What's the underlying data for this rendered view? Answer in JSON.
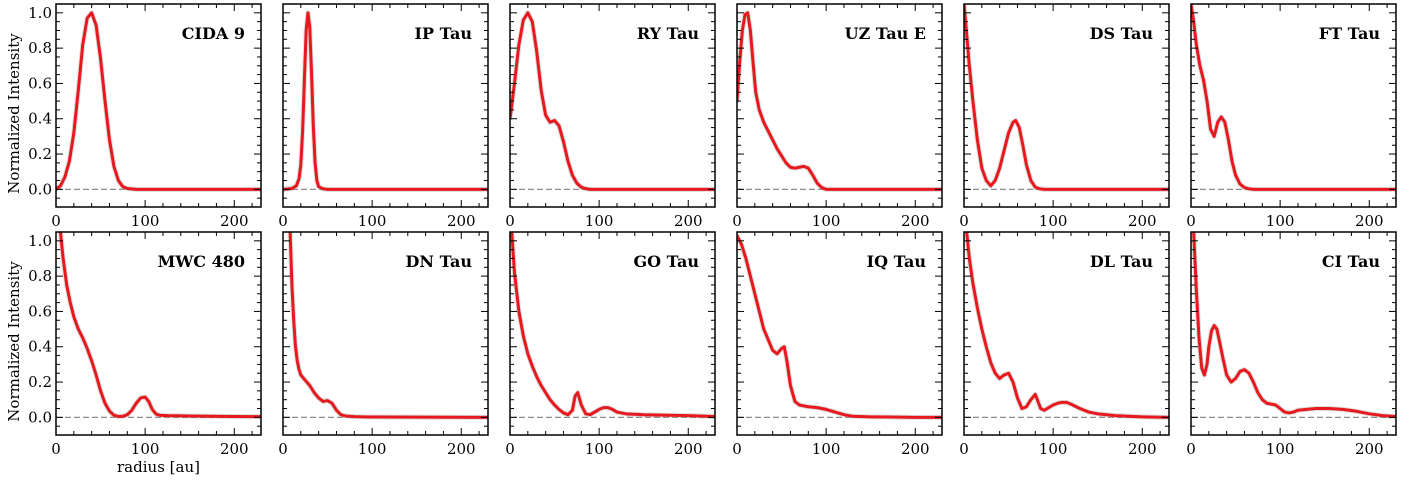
{
  "figure": {
    "ylabel": "Normalized Intensity",
    "xlabel": "radius [au]",
    "colors": {
      "profile": "#e8191e",
      "band": "#9a9a9a",
      "zero_line": "#8c8c8c"
    }
  },
  "chart_data": [
    {
      "type": "line",
      "title": "CIDA 9",
      "xlim": [
        0,
        230
      ],
      "ylim": [
        -0.1,
        1.05
      ],
      "xticks": [
        0,
        100,
        200
      ],
      "yticks": [
        0.0,
        0.2,
        0.4,
        0.6,
        0.8,
        1.0
      ],
      "series": [
        {
          "x": [
            0,
            5,
            10,
            15,
            20,
            25,
            30,
            35,
            40,
            45,
            50,
            55,
            60,
            65,
            70,
            75,
            80,
            90,
            100,
            150,
            230
          ],
          "y": [
            0.0,
            0.02,
            0.07,
            0.16,
            0.32,
            0.56,
            0.82,
            0.97,
            1.0,
            0.93,
            0.74,
            0.5,
            0.28,
            0.13,
            0.05,
            0.015,
            0.005,
            0.0,
            0.0,
            0.0,
            0.0
          ]
        }
      ]
    },
    {
      "type": "line",
      "title": "IP Tau",
      "xlim": [
        0,
        230
      ],
      "ylim": [
        -0.1,
        1.05
      ],
      "xticks": [
        0,
        100,
        200
      ],
      "yticks": [
        0.0,
        0.2,
        0.4,
        0.6,
        0.8,
        1.0
      ],
      "series": [
        {
          "x": [
            0,
            10,
            15,
            18,
            20,
            22,
            24,
            26,
            28,
            30,
            32,
            34,
            36,
            38,
            40,
            45,
            50,
            100,
            230
          ],
          "y": [
            0.0,
            0.005,
            0.02,
            0.06,
            0.14,
            0.33,
            0.62,
            0.9,
            1.0,
            0.92,
            0.66,
            0.36,
            0.15,
            0.05,
            0.015,
            0.003,
            0.0,
            0.0,
            0.0
          ]
        }
      ]
    },
    {
      "type": "line",
      "title": "RY Tau",
      "xlim": [
        0,
        230
      ],
      "ylim": [
        -0.1,
        1.05
      ],
      "xticks": [
        0,
        100,
        200
      ],
      "yticks": [
        0.0,
        0.2,
        0.4,
        0.6,
        0.8,
        1.0
      ],
      "series": [
        {
          "x": [
            0,
            5,
            10,
            15,
            20,
            25,
            30,
            35,
            40,
            45,
            50,
            55,
            60,
            65,
            70,
            75,
            80,
            85,
            90,
            100,
            150,
            230
          ],
          "y": [
            0.4,
            0.6,
            0.82,
            0.96,
            1.0,
            0.95,
            0.78,
            0.56,
            0.42,
            0.38,
            0.39,
            0.36,
            0.27,
            0.16,
            0.08,
            0.035,
            0.012,
            0.004,
            0.0,
            0.0,
            0.0,
            0.0
          ]
        }
      ]
    },
    {
      "type": "line",
      "title": "UZ Tau E",
      "xlim": [
        0,
        230
      ],
      "ylim": [
        -0.1,
        1.05
      ],
      "xticks": [
        0,
        100,
        200
      ],
      "yticks": [
        0.0,
        0.2,
        0.4,
        0.6,
        0.8,
        1.0
      ],
      "series": [
        {
          "x": [
            0,
            3,
            6,
            9,
            12,
            15,
            18,
            21,
            25,
            30,
            35,
            40,
            45,
            50,
            55,
            60,
            65,
            70,
            75,
            80,
            85,
            90,
            95,
            100,
            150,
            230
          ],
          "y": [
            0.5,
            0.72,
            0.9,
            0.99,
            1.0,
            0.9,
            0.72,
            0.55,
            0.45,
            0.38,
            0.33,
            0.28,
            0.23,
            0.19,
            0.15,
            0.125,
            0.12,
            0.125,
            0.13,
            0.12,
            0.08,
            0.035,
            0.01,
            0.0,
            0.0,
            0.0
          ]
        }
      ]
    },
    {
      "type": "line",
      "title": "DS Tau",
      "xlim": [
        0,
        230
      ],
      "ylim": [
        -0.1,
        1.05
      ],
      "xticks": [
        0,
        100,
        200
      ],
      "yticks": [
        0.0,
        0.2,
        0.4,
        0.6,
        0.8,
        1.0
      ],
      "series": [
        {
          "x": [
            0,
            3,
            6,
            10,
            15,
            20,
            25,
            30,
            35,
            40,
            45,
            50,
            55,
            58,
            62,
            66,
            70,
            75,
            80,
            85,
            90,
            100,
            150,
            230
          ],
          "y": [
            1.05,
            0.88,
            0.7,
            0.5,
            0.28,
            0.12,
            0.05,
            0.02,
            0.05,
            0.12,
            0.22,
            0.32,
            0.38,
            0.39,
            0.35,
            0.25,
            0.14,
            0.05,
            0.012,
            0.003,
            0.0,
            0.0,
            0.0,
            0.0
          ]
        }
      ]
    },
    {
      "type": "line",
      "title": "FT Tau",
      "xlim": [
        0,
        230
      ],
      "ylim": [
        -0.1,
        1.05
      ],
      "xticks": [
        0,
        100,
        200
      ],
      "yticks": [
        0.0,
        0.2,
        0.4,
        0.6,
        0.8,
        1.0
      ],
      "series": [
        {
          "x": [
            0,
            3,
            6,
            10,
            14,
            18,
            22,
            26,
            30,
            34,
            38,
            42,
            46,
            50,
            55,
            60,
            65,
            70,
            80,
            100,
            150,
            230
          ],
          "y": [
            1.05,
            0.95,
            0.82,
            0.7,
            0.62,
            0.5,
            0.34,
            0.3,
            0.38,
            0.41,
            0.38,
            0.28,
            0.16,
            0.08,
            0.03,
            0.01,
            0.003,
            0.0,
            0.0,
            0.0,
            0.0,
            0.0
          ]
        }
      ]
    },
    {
      "type": "line",
      "title": "MWC 480",
      "xlim": [
        0,
        230
      ],
      "ylim": [
        -0.1,
        1.05
      ],
      "xticks": [
        0,
        100,
        200
      ],
      "yticks": [
        0.0,
        0.2,
        0.4,
        0.6,
        0.8,
        1.0
      ],
      "series": [
        {
          "x": [
            5,
            8,
            12,
            16,
            20,
            25,
            30,
            35,
            40,
            45,
            50,
            55,
            60,
            65,
            70,
            75,
            80,
            85,
            90,
            95,
            100,
            104,
            108,
            112,
            116,
            125,
            150,
            200,
            230
          ],
          "y": [
            1.05,
            0.9,
            0.75,
            0.65,
            0.57,
            0.5,
            0.45,
            0.39,
            0.32,
            0.24,
            0.15,
            0.08,
            0.035,
            0.012,
            0.005,
            0.006,
            0.015,
            0.04,
            0.08,
            0.11,
            0.115,
            0.09,
            0.045,
            0.02,
            0.012,
            0.01,
            0.008,
            0.005,
            0.004
          ]
        }
      ]
    },
    {
      "type": "line",
      "title": "DN Tau",
      "xlim": [
        0,
        230
      ],
      "ylim": [
        -0.1,
        1.05
      ],
      "xticks": [
        0,
        100,
        200
      ],
      "yticks": [
        0.0,
        0.2,
        0.4,
        0.6,
        0.8,
        1.0
      ],
      "series": [
        {
          "x": [
            8,
            10,
            12,
            14,
            16,
            18,
            20,
            25,
            30,
            35,
            40,
            45,
            50,
            55,
            60,
            65,
            70,
            80,
            90,
            100,
            150,
            230
          ],
          "y": [
            1.05,
            0.75,
            0.55,
            0.4,
            0.32,
            0.27,
            0.24,
            0.21,
            0.18,
            0.14,
            0.11,
            0.09,
            0.095,
            0.08,
            0.04,
            0.015,
            0.008,
            0.004,
            0.003,
            0.002,
            0.001,
            0.0
          ]
        }
      ]
    },
    {
      "type": "line",
      "title": "GO Tau",
      "xlim": [
        0,
        230
      ],
      "ylim": [
        -0.1,
        1.05
      ],
      "xticks": [
        0,
        100,
        200
      ],
      "yticks": [
        0.0,
        0.2,
        0.4,
        0.6,
        0.8,
        1.0
      ],
      "series": [
        {
          "x": [
            2,
            5,
            10,
            15,
            20,
            25,
            30,
            35,
            40,
            45,
            50,
            55,
            60,
            65,
            70,
            73,
            76,
            80,
            85,
            90,
            95,
            100,
            105,
            110,
            115,
            120,
            130,
            150,
            200,
            230
          ],
          "y": [
            1.05,
            0.82,
            0.6,
            0.46,
            0.36,
            0.29,
            0.23,
            0.18,
            0.14,
            0.1,
            0.07,
            0.045,
            0.025,
            0.015,
            0.04,
            0.12,
            0.14,
            0.07,
            0.02,
            0.015,
            0.03,
            0.045,
            0.055,
            0.055,
            0.045,
            0.03,
            0.02,
            0.015,
            0.01,
            0.005
          ]
        }
      ]
    },
    {
      "type": "line",
      "title": "IQ Tau",
      "xlim": [
        0,
        230
      ],
      "ylim": [
        -0.1,
        1.05
      ],
      "xticks": [
        0,
        100,
        200
      ],
      "yticks": [
        0.0,
        0.2,
        0.4,
        0.6,
        0.8,
        1.0
      ],
      "series": [
        {
          "x": [
            0,
            5,
            10,
            15,
            20,
            25,
            30,
            35,
            40,
            45,
            50,
            53,
            56,
            60,
            65,
            70,
            80,
            90,
            100,
            110,
            120,
            130,
            150,
            200,
            230
          ],
          "y": [
            1.03,
            0.98,
            0.9,
            0.8,
            0.7,
            0.6,
            0.5,
            0.44,
            0.38,
            0.36,
            0.39,
            0.4,
            0.32,
            0.18,
            0.09,
            0.07,
            0.06,
            0.055,
            0.045,
            0.03,
            0.015,
            0.006,
            0.003,
            0.0,
            0.0
          ]
        }
      ]
    },
    {
      "type": "line",
      "title": "DL Tau",
      "xlim": [
        0,
        230
      ],
      "ylim": [
        -0.1,
        1.05
      ],
      "xticks": [
        0,
        100,
        200
      ],
      "yticks": [
        0.0,
        0.2,
        0.4,
        0.6,
        0.8,
        1.0
      ],
      "series": [
        {
          "x": [
            3,
            6,
            10,
            15,
            20,
            25,
            30,
            35,
            40,
            45,
            50,
            55,
            60,
            65,
            70,
            75,
            80,
            83,
            86,
            90,
            95,
            100,
            105,
            110,
            115,
            120,
            130,
            140,
            150,
            170,
            200,
            230
          ],
          "y": [
            1.05,
            0.9,
            0.76,
            0.62,
            0.5,
            0.4,
            0.31,
            0.25,
            0.22,
            0.24,
            0.25,
            0.2,
            0.11,
            0.05,
            0.06,
            0.1,
            0.13,
            0.09,
            0.05,
            0.04,
            0.055,
            0.07,
            0.08,
            0.085,
            0.085,
            0.075,
            0.05,
            0.03,
            0.02,
            0.01,
            0.003,
            0.0
          ]
        }
      ]
    },
    {
      "type": "line",
      "title": "CI Tau",
      "xlim": [
        0,
        230
      ],
      "ylim": [
        -0.1,
        1.05
      ],
      "xticks": [
        0,
        100,
        200
      ],
      "yticks": [
        0.0,
        0.2,
        0.4,
        0.6,
        0.8,
        1.0
      ],
      "series": [
        {
          "x": [
            3,
            6,
            9,
            12,
            15,
            18,
            20,
            23,
            26,
            29,
            32,
            36,
            40,
            45,
            50,
            55,
            60,
            65,
            70,
            75,
            80,
            85,
            90,
            95,
            100,
            105,
            110,
            115,
            120,
            130,
            140,
            155,
            170,
            185,
            200,
            215,
            230
          ],
          "y": [
            1.05,
            0.72,
            0.45,
            0.28,
            0.24,
            0.3,
            0.4,
            0.49,
            0.52,
            0.5,
            0.43,
            0.33,
            0.24,
            0.2,
            0.22,
            0.26,
            0.27,
            0.25,
            0.2,
            0.14,
            0.1,
            0.08,
            0.075,
            0.07,
            0.05,
            0.03,
            0.025,
            0.03,
            0.04,
            0.045,
            0.05,
            0.05,
            0.045,
            0.035,
            0.02,
            0.01,
            0.005
          ]
        }
      ]
    }
  ]
}
